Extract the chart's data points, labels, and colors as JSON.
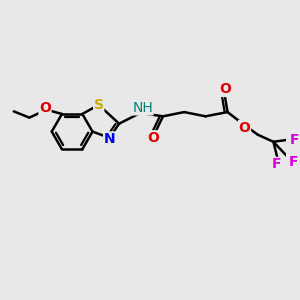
{
  "background_color": "#e8e8e8",
  "bond_color": "#000000",
  "bond_width": 1.8,
  "figsize": [
    3.0,
    3.0
  ],
  "dpi": 100,
  "atoms": {
    "S": {
      "color": "#ccaa00",
      "fontsize": 10,
      "fontweight": "bold"
    },
    "N": {
      "color": "#0000ee",
      "fontsize": 10,
      "fontweight": "bold"
    },
    "O": {
      "color": "#dd0000",
      "fontsize": 10,
      "fontweight": "bold"
    },
    "F": {
      "color": "#dd00dd",
      "fontsize": 10,
      "fontweight": "bold"
    },
    "NH": {
      "color": "#008080",
      "fontsize": 10,
      "fontweight": "normal"
    }
  },
  "xlim": [
    0,
    10
  ],
  "ylim": [
    0,
    10
  ]
}
